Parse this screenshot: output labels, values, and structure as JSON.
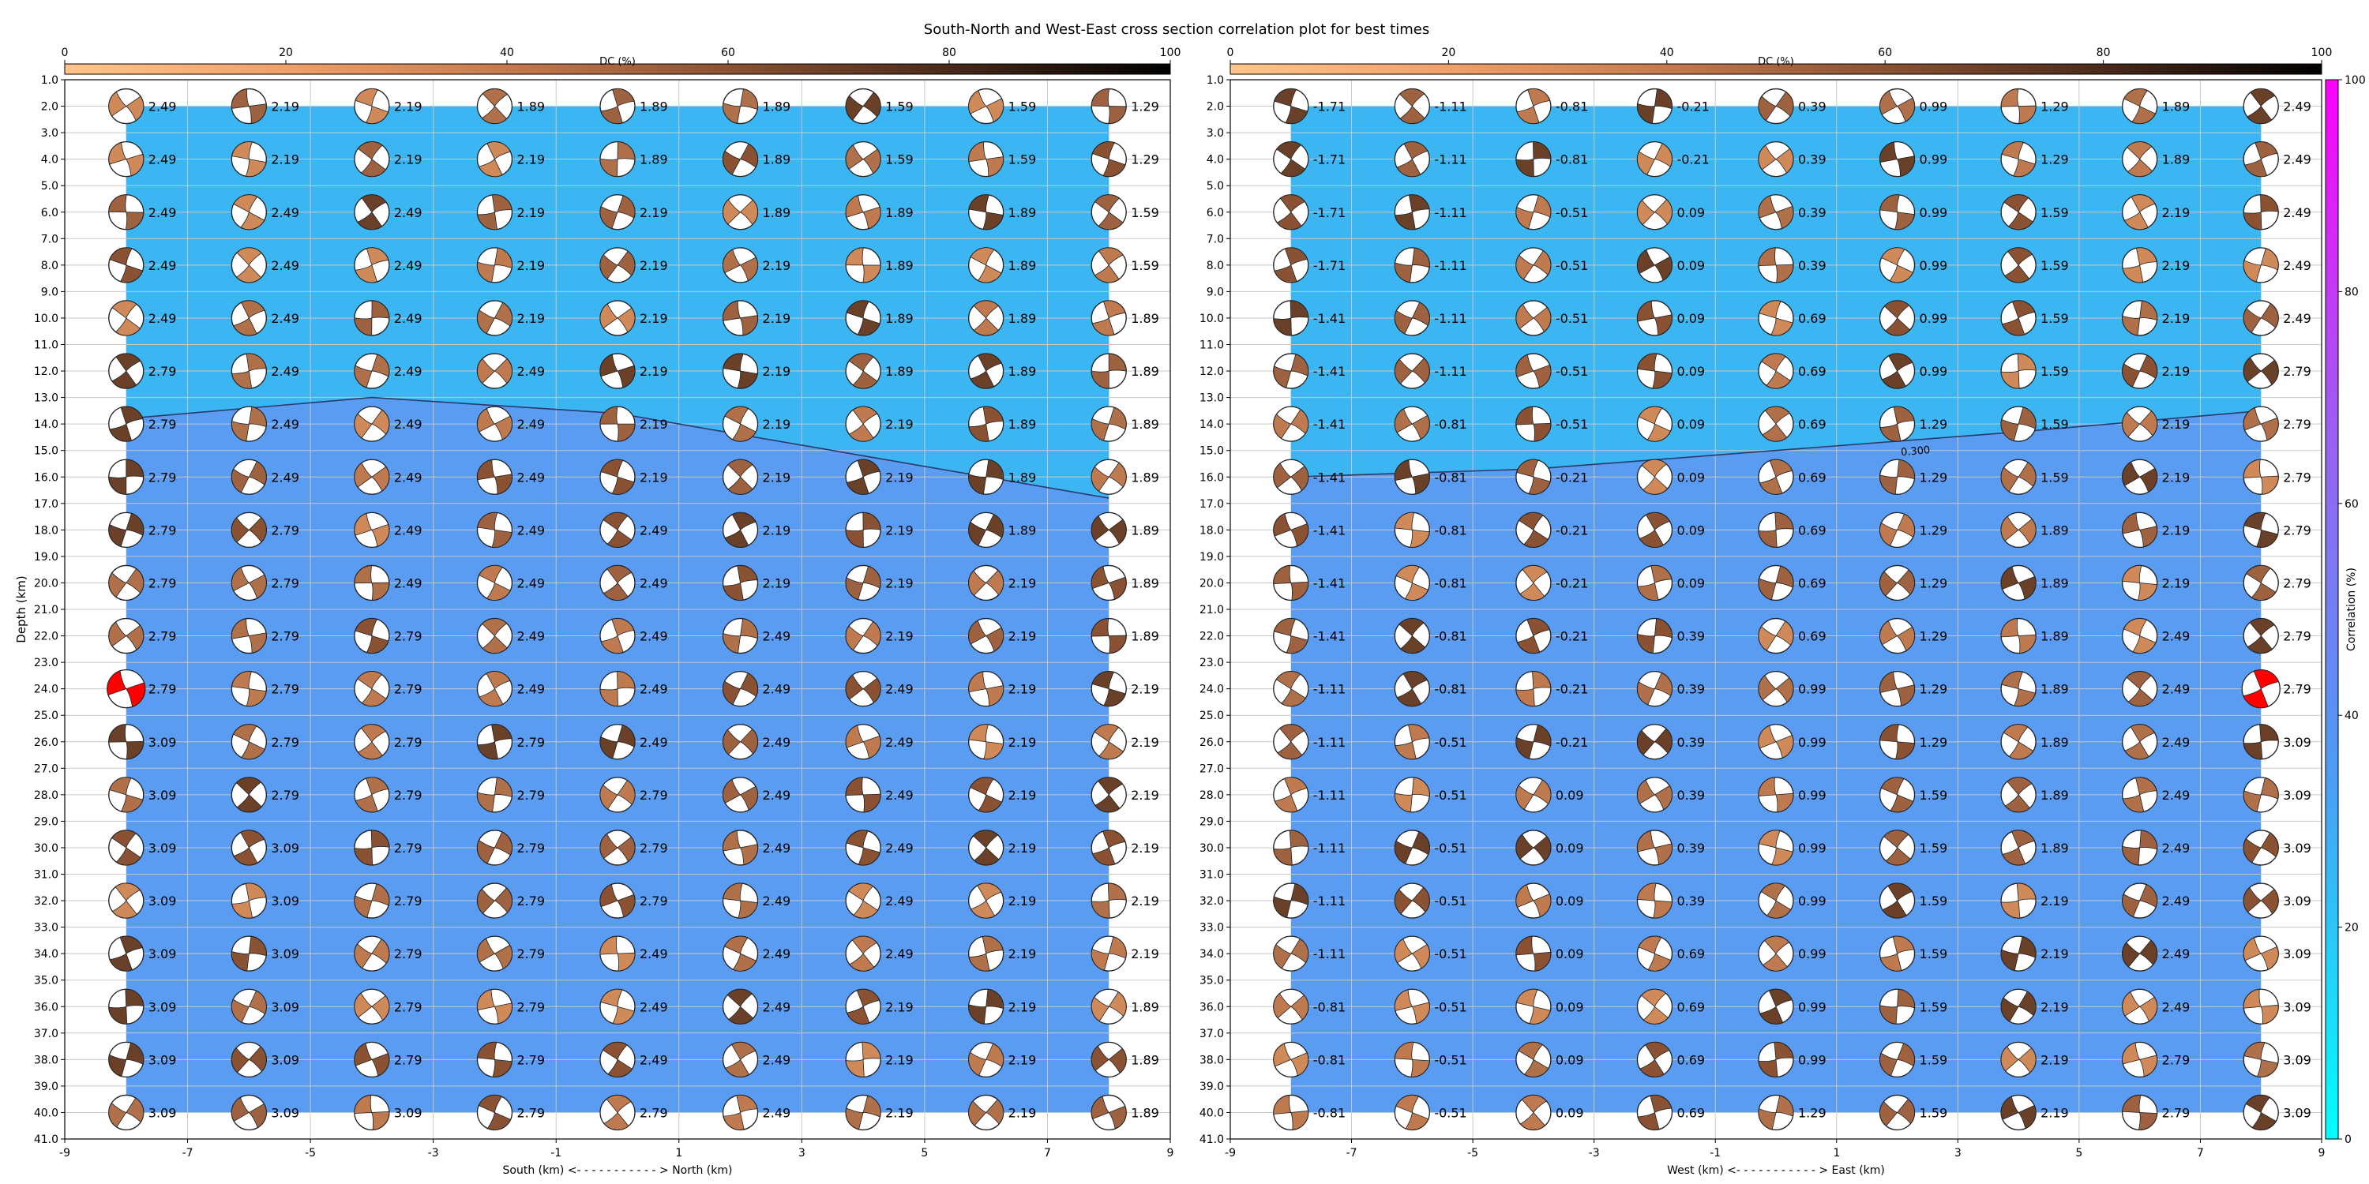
{
  "title": "South-North and West-East cross section correlation plot for best times",
  "dc_colorbar": {
    "label": "DC (%)",
    "ticks": [
      "0",
      "20",
      "40",
      "60",
      "80",
      "100"
    ],
    "range": [
      0,
      100
    ],
    "colormap": [
      "#ffc58a",
      "#f0a06a",
      "#c67a4c",
      "#8a5233",
      "#4a2a1a",
      "#000000"
    ]
  },
  "correlation_colorbar": {
    "label": "Correlation (%)",
    "ticks": [
      "0",
      "20",
      "40",
      "60",
      "80",
      "100"
    ],
    "range": [
      0,
      100
    ],
    "colormap": [
      "#00ffff",
      "#4a9ff5",
      "#9b60f0",
      "#ff00ff"
    ]
  },
  "colors": {
    "high_corr_fill": "#3bb6f2",
    "low_corr_fill": "#5a9cf1",
    "best_solution_fill": "#ff0000",
    "contour_line": "#2a3a6a",
    "grid": "#c8c8c8"
  },
  "contour_label": "0.300",
  "y_axis": {
    "label": "Depth (km)",
    "ticks": [
      "1.0",
      "2.0",
      "3.0",
      "4.0",
      "5.0",
      "6.0",
      "7.0",
      "8.0",
      "9.0",
      "10.0",
      "11.0",
      "12.0",
      "13.0",
      "14.0",
      "15.0",
      "16.0",
      "17.0",
      "18.0",
      "19.0",
      "20.0",
      "21.0",
      "22.0",
      "23.0",
      "24.0",
      "25.0",
      "26.0",
      "27.0",
      "28.0",
      "29.0",
      "30.0",
      "31.0",
      "32.0",
      "33.0",
      "34.0",
      "35.0",
      "36.0",
      "37.0",
      "38.0",
      "39.0",
      "40.0",
      "41.0"
    ],
    "range": [
      1,
      41
    ],
    "inverted": true
  },
  "chart_data": [
    {
      "type": "heatmap",
      "name_key": "south-north",
      "xlabel": "South (km) <- - - - - - - - - - - > North (km)",
      "x_ticks": [
        "-9",
        "-7",
        "-5",
        "-3",
        "-1",
        "1",
        "3",
        "5",
        "7",
        "9"
      ],
      "xlim": [
        -9,
        9
      ],
      "ylabel": "Depth (km)",
      "ylim": [
        41,
        1
      ],
      "x": [
        -8,
        -6,
        -4,
        -2,
        0,
        2,
        4,
        6,
        8
      ],
      "depths": [
        2,
        4,
        6,
        8,
        10,
        12,
        14,
        16,
        18,
        20,
        22,
        24,
        26,
        28,
        30,
        32,
        34,
        36,
        38,
        40
      ],
      "times": [
        [
          "2.49",
          "2.19",
          "2.19",
          "1.89",
          "1.89",
          "1.89",
          "1.59",
          "1.59",
          "1.29"
        ],
        [
          "2.49",
          "2.19",
          "2.19",
          "2.19",
          "1.89",
          "1.89",
          "1.59",
          "1.59",
          "1.29"
        ],
        [
          "2.49",
          "2.49",
          "2.49",
          "2.19",
          "2.19",
          "1.89",
          "1.89",
          "1.89",
          "1.59"
        ],
        [
          "2.49",
          "2.49",
          "2.49",
          "2.19",
          "2.19",
          "2.19",
          "1.89",
          "1.89",
          "1.59"
        ],
        [
          "2.49",
          "2.49",
          "2.49",
          "2.19",
          "2.19",
          "2.19",
          "1.89",
          "1.89",
          "1.89"
        ],
        [
          "2.79",
          "2.49",
          "2.49",
          "2.49",
          "2.19",
          "2.19",
          "1.89",
          "1.89",
          "1.89"
        ],
        [
          "2.79",
          "2.49",
          "2.49",
          "2.49",
          "2.19",
          "2.19",
          "2.19",
          "1.89",
          "1.89"
        ],
        [
          "2.79",
          "2.49",
          "2.49",
          "2.49",
          "2.19",
          "2.19",
          "2.19",
          "1.89",
          "1.89"
        ],
        [
          "2.79",
          "2.79",
          "2.49",
          "2.49",
          "2.49",
          "2.19",
          "2.19",
          "1.89",
          "1.89"
        ],
        [
          "2.79",
          "2.79",
          "2.49",
          "2.49",
          "2.49",
          "2.19",
          "2.19",
          "2.19",
          "1.89"
        ],
        [
          "2.79",
          "2.79",
          "2.79",
          "2.49",
          "2.49",
          "2.49",
          "2.19",
          "2.19",
          "1.89"
        ],
        [
          "2.79",
          "2.79",
          "2.79",
          "2.49",
          "2.49",
          "2.49",
          "2.49",
          "2.19",
          "2.19"
        ],
        [
          "3.09",
          "2.79",
          "2.79",
          "2.79",
          "2.49",
          "2.49",
          "2.49",
          "2.19",
          "2.19"
        ],
        [
          "3.09",
          "2.79",
          "2.79",
          "2.79",
          "2.79",
          "2.49",
          "2.49",
          "2.19",
          "2.19"
        ],
        [
          "3.09",
          "3.09",
          "2.79",
          "2.79",
          "2.79",
          "2.49",
          "2.49",
          "2.19",
          "2.19"
        ],
        [
          "3.09",
          "3.09",
          "2.79",
          "2.79",
          "2.79",
          "2.49",
          "2.49",
          "2.19",
          "2.19"
        ],
        [
          "3.09",
          "3.09",
          "2.79",
          "2.79",
          "2.49",
          "2.49",
          "2.49",
          "2.19",
          "2.19"
        ],
        [
          "3.09",
          "3.09",
          "2.79",
          "2.79",
          "2.49",
          "2.49",
          "2.19",
          "2.19",
          "1.89"
        ],
        [
          "3.09",
          "3.09",
          "2.79",
          "2.79",
          "2.49",
          "2.49",
          "2.19",
          "2.19",
          "1.89"
        ],
        [
          "3.09",
          "3.09",
          "3.09",
          "2.79",
          "2.79",
          "2.49",
          "2.19",
          "2.19",
          "1.89"
        ]
      ],
      "high_correlation_region_boundary": {
        "x": [
          -8,
          -4,
          0,
          4,
          8
        ],
        "depth": [
          13.8,
          13.0,
          13.6,
          15.2,
          16.8
        ]
      },
      "best_solution": {
        "x": -8,
        "depth": 24,
        "time": "2.79"
      }
    },
    {
      "type": "heatmap",
      "name_key": "west-east",
      "xlabel": "West (km) <- - - - - - - - - - - > East (km)",
      "x_ticks": [
        "-9",
        "-7",
        "-5",
        "-3",
        "-1",
        "1",
        "3",
        "5",
        "7",
        "9"
      ],
      "xlim": [
        -9,
        9
      ],
      "ylabel": "Depth (km)",
      "ylim": [
        41,
        1
      ],
      "x": [
        -8,
        -6,
        -4,
        -2,
        0,
        2,
        4,
        6,
        8
      ],
      "depths": [
        2,
        4,
        6,
        8,
        10,
        12,
        14,
        16,
        18,
        20,
        22,
        24,
        26,
        28,
        30,
        32,
        34,
        36,
        38,
        40
      ],
      "times": [
        [
          "-1.71",
          "-1.11",
          "-0.81",
          "-0.21",
          "0.39",
          "0.99",
          "1.29",
          "1.89",
          "2.49"
        ],
        [
          "-1.71",
          "-1.11",
          "-0.81",
          "-0.21",
          "0.39",
          "0.99",
          "1.29",
          "1.89",
          "2.49"
        ],
        [
          "-1.71",
          "-1.11",
          "-0.51",
          "0.09",
          "0.39",
          "0.99",
          "1.59",
          "2.19",
          "2.49"
        ],
        [
          "-1.71",
          "-1.11",
          "-0.51",
          "0.09",
          "0.39",
          "0.99",
          "1.59",
          "2.19",
          "2.49"
        ],
        [
          "-1.41",
          "-1.11",
          "-0.51",
          "0.09",
          "0.69",
          "0.99",
          "1.59",
          "2.19",
          "2.49"
        ],
        [
          "-1.41",
          "-1.11",
          "-0.51",
          "0.09",
          "0.69",
          "0.99",
          "1.59",
          "2.19",
          "2.79"
        ],
        [
          "-1.41",
          "-0.81",
          "-0.51",
          "0.09",
          "0.69",
          "1.29",
          "1.59",
          "2.19",
          "2.79"
        ],
        [
          "-1.41",
          "-0.81",
          "-0.21",
          "0.09",
          "0.69",
          "1.29",
          "1.59",
          "2.19",
          "2.79"
        ],
        [
          "-1.41",
          "-0.81",
          "-0.21",
          "0.09",
          "0.69",
          "1.29",
          "1.89",
          "2.19",
          "2.79"
        ],
        [
          "-1.41",
          "-0.81",
          "-0.21",
          "0.09",
          "0.69",
          "1.29",
          "1.89",
          "2.19",
          "2.79"
        ],
        [
          "-1.41",
          "-0.81",
          "-0.21",
          "0.39",
          "0.69",
          "1.29",
          "1.89",
          "2.49",
          "2.79"
        ],
        [
          "-1.11",
          "-0.81",
          "-0.21",
          "0.39",
          "0.99",
          "1.29",
          "1.89",
          "2.49",
          "2.79"
        ],
        [
          "-1.11",
          "-0.51",
          "-0.21",
          "0.39",
          "0.99",
          "1.29",
          "1.89",
          "2.49",
          "3.09"
        ],
        [
          "-1.11",
          "-0.51",
          "0.09",
          "0.39",
          "0.99",
          "1.59",
          "1.89",
          "2.49",
          "3.09"
        ],
        [
          "-1.11",
          "-0.51",
          "0.09",
          "0.39",
          "0.99",
          "1.59",
          "1.89",
          "2.49",
          "3.09"
        ],
        [
          "-1.11",
          "-0.51",
          "0.09",
          "0.39",
          "0.99",
          "1.59",
          "2.19",
          "2.49",
          "3.09"
        ],
        [
          "-1.11",
          "-0.51",
          "0.09",
          "0.69",
          "0.99",
          "1.59",
          "2.19",
          "2.49",
          "3.09"
        ],
        [
          "-0.81",
          "-0.51",
          "0.09",
          "0.69",
          "0.99",
          "1.59",
          "2.19",
          "2.49",
          "3.09"
        ],
        [
          "-0.81",
          "-0.51",
          "0.09",
          "0.69",
          "0.99",
          "1.59",
          "2.19",
          "2.79",
          "3.09"
        ],
        [
          "-0.81",
          "-0.51",
          "0.09",
          "0.69",
          "1.29",
          "1.59",
          "2.19",
          "2.79",
          "3.09"
        ]
      ],
      "high_correlation_region_boundary": {
        "x": [
          -8,
          -4,
          0,
          4,
          8
        ],
        "depth": [
          16.0,
          15.7,
          15.0,
          14.3,
          13.5
        ]
      },
      "contour_label_position": {
        "x": 2.3,
        "depth": 15.0
      },
      "best_solution": {
        "x": 8,
        "depth": 24,
        "time": "2.79"
      }
    }
  ]
}
